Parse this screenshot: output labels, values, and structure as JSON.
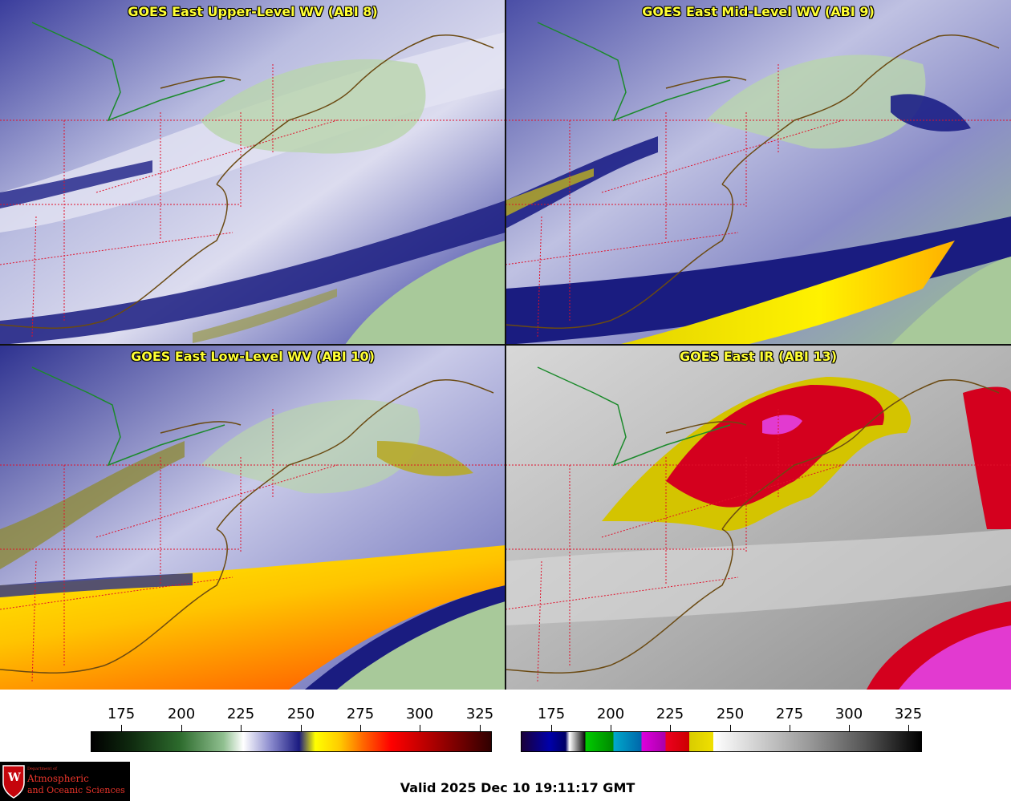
{
  "panels": [
    {
      "title": "GOES East Upper-Level WV (ABI 8)"
    },
    {
      "title": "GOES East Mid-Level WV (ABI 9)"
    },
    {
      "title": "GOES East Low-Level WV (ABI 10)"
    },
    {
      "title": "GOES East IR (ABI 13)"
    }
  ],
  "colorbar_wv": {
    "ticks": [
      "175",
      "200",
      "225",
      "250",
      "275",
      "300",
      "325"
    ]
  },
  "colorbar_ir": {
    "ticks": [
      "175",
      "200",
      "225",
      "250",
      "275",
      "300",
      "325"
    ]
  },
  "logo": {
    "line1": "Department of",
    "line2": "Atmospheric",
    "line3": "and Oceanic Sciences",
    "badge": "W"
  },
  "footer": {
    "valid": "Valid 2025 Dec 10 19:11:17 GMT"
  },
  "colors": {
    "state_border": "#e0102a",
    "coast": "#6b4a12",
    "canada_border": "#1b8a2b",
    "title_text": "#ffff33"
  }
}
